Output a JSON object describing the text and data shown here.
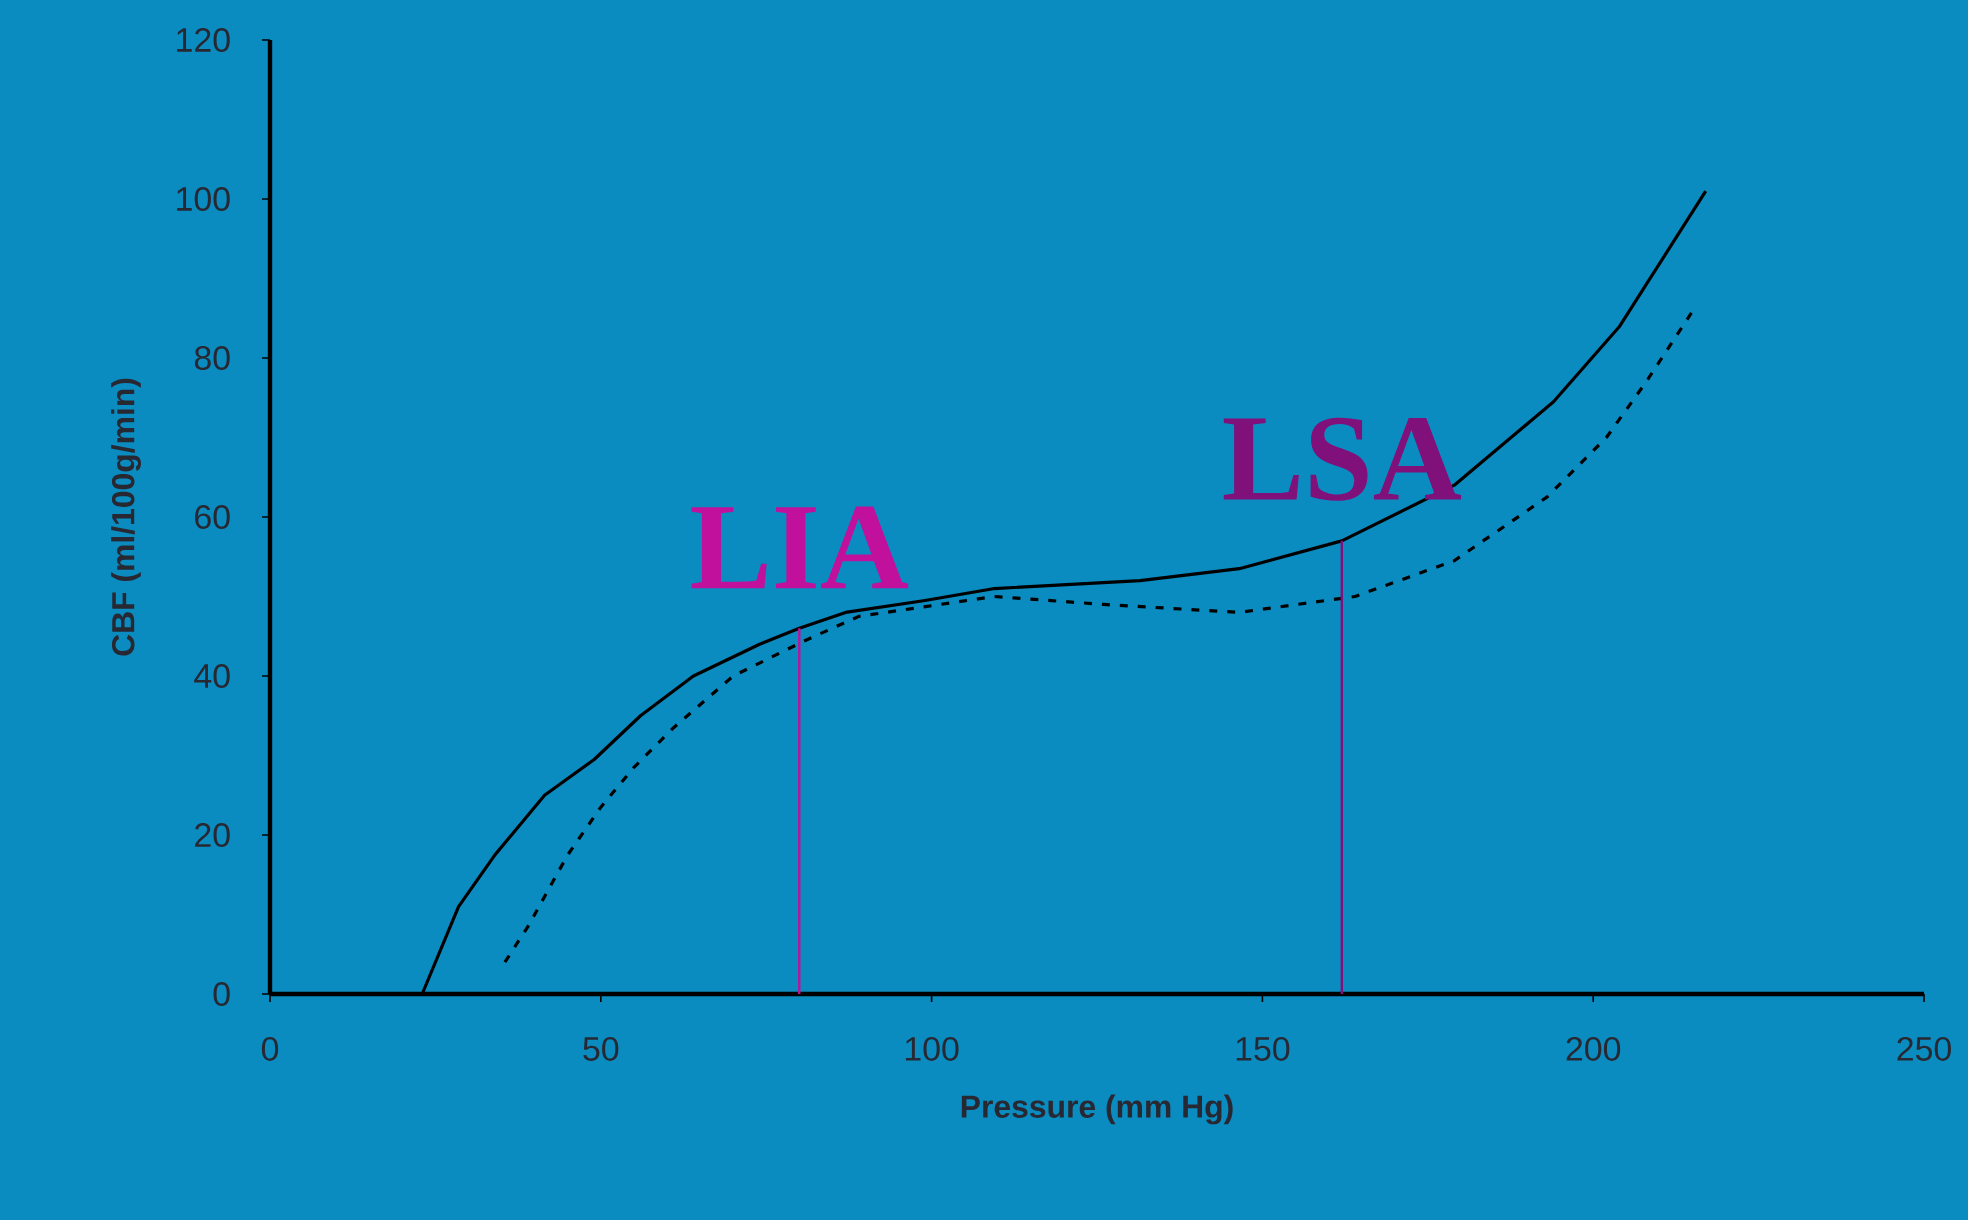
{
  "chart_data": {
    "type": "line",
    "xlabel": "Pressure (mm Hg)",
    "ylabel": "CBF (ml/100g/min)",
    "xlim": [
      0,
      250
    ],
    "ylim": [
      0,
      120
    ],
    "xticks": [
      0,
      50,
      100,
      150,
      200,
      250
    ],
    "yticks": [
      0,
      20,
      40,
      60,
      80,
      100,
      120
    ],
    "marker": "none",
    "legend": false,
    "grid": false,
    "series": [
      {
        "color": "#000000",
        "line_style": "solid",
        "x": [
          23,
          28.5,
          34,
          41.5,
          49,
          56,
          64,
          74,
          80,
          87,
          99,
          109.5,
          131.5,
          146.5,
          162,
          179,
          194,
          204,
          217
        ],
        "values": [
          0,
          11,
          17.5,
          25,
          29.5,
          35,
          40,
          44,
          46,
          48,
          49.5,
          51,
          52,
          53.5,
          57,
          64,
          74.5,
          84,
          101
        ]
      },
      {
        "color": "#000000",
        "line_style": "dashed",
        "x": [
          35.5,
          39,
          45,
          50,
          55,
          61,
          70,
          81,
          89,
          109.5,
          126,
          146.5,
          164,
          179,
          193,
          202,
          208,
          215.5
        ],
        "values": [
          4,
          8.5,
          17.5,
          23.5,
          28.5,
          33.5,
          40,
          44.5,
          47.5,
          50,
          49,
          48,
          50,
          54.5,
          62.5,
          70,
          77,
          86.5
        ]
      }
    ],
    "ref_lines": [
      {
        "axis": "x",
        "value": 80,
        "label": "LIA",
        "color": "#c0109c"
      },
      {
        "axis": "x",
        "value": 162,
        "label": "LSA",
        "color": "#80107a"
      }
    ]
  }
}
